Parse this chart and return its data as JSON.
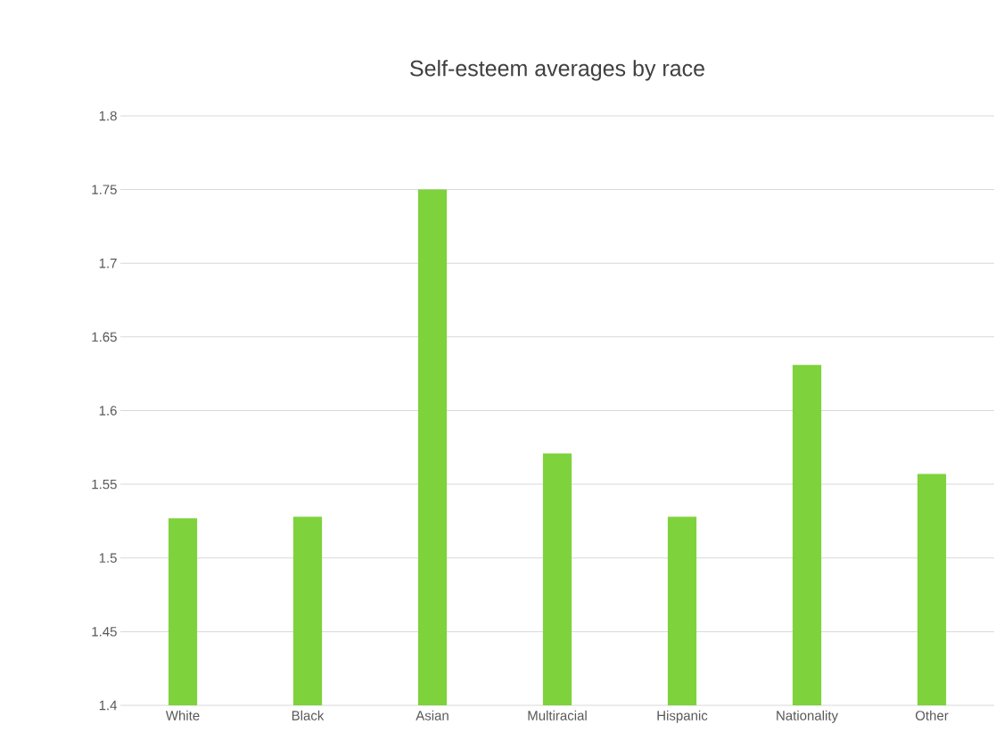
{
  "chart_data": {
    "type": "bar",
    "title": "Self-esteem averages by race",
    "categories": [
      "White",
      "Black",
      "Asian",
      "Multiracial",
      "Hispanic",
      "Nationality",
      "Other"
    ],
    "values": [
      1.527,
      1.528,
      1.75,
      1.571,
      1.528,
      1.631,
      1.557
    ],
    "color": "#7ed23c",
    "ylim": [
      1.4,
      1.8
    ],
    "yticks": [
      1.4,
      1.45,
      1.5,
      1.55,
      1.6,
      1.65,
      1.7,
      1.75,
      1.8
    ],
    "grid": "y"
  }
}
